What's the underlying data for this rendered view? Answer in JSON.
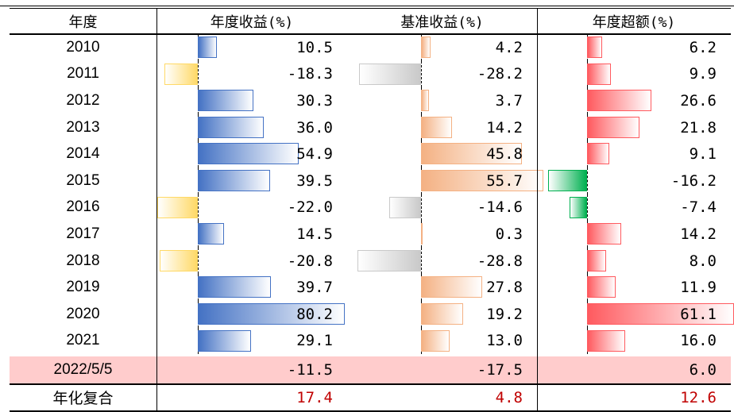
{
  "headers": [
    "年度",
    "年度收益(%)",
    "基准收益(%)",
    "年度超额(%)"
  ],
  "colors": {
    "pos": [
      "#4472C4",
      "#F4B183",
      "#FF5A5F"
    ],
    "neg": [
      "#FFD966",
      "#C9C9C9",
      "#00B050"
    ],
    "ytd_bg": "#FFCCCC",
    "summary_text": "#C00000"
  },
  "chart_data": {
    "type": "table",
    "columns": [
      "年度",
      "年度收益(%)",
      "基准收益(%)",
      "年度超额(%)"
    ],
    "rows": [
      {
        "year": "2010",
        "values": [
          "10.5",
          "4.2",
          "6.2"
        ]
      },
      {
        "year": "2011",
        "values": [
          "-18.3",
          "-28.2",
          "9.9"
        ]
      },
      {
        "year": "2012",
        "values": [
          "30.3",
          "3.7",
          "26.6"
        ]
      },
      {
        "year": "2013",
        "values": [
          "36.0",
          "14.2",
          "21.8"
        ]
      },
      {
        "year": "2014",
        "values": [
          "54.9",
          "45.8",
          "9.1"
        ]
      },
      {
        "year": "2015",
        "values": [
          "39.5",
          "55.7",
          "-16.2"
        ]
      },
      {
        "year": "2016",
        "values": [
          "-22.0",
          "-14.6",
          "-7.4"
        ]
      },
      {
        "year": "2017",
        "values": [
          "14.5",
          "0.3",
          "14.2"
        ]
      },
      {
        "year": "2018",
        "values": [
          "-20.8",
          "-28.8",
          "8.0"
        ]
      },
      {
        "year": "2019",
        "values": [
          "39.7",
          "27.8",
          "11.9"
        ]
      },
      {
        "year": "2020",
        "values": [
          "80.2",
          "19.2",
          "61.1"
        ]
      },
      {
        "year": "2021",
        "values": [
          "29.1",
          "13.0",
          "16.0"
        ]
      }
    ],
    "ytd": {
      "year": "2022/5/5",
      "values": [
        "-11.5",
        "-17.5",
        "6.0"
      ]
    },
    "summary": {
      "label": "年化复合",
      "values": [
        "17.4",
        "4.8",
        "12.6"
      ]
    }
  }
}
